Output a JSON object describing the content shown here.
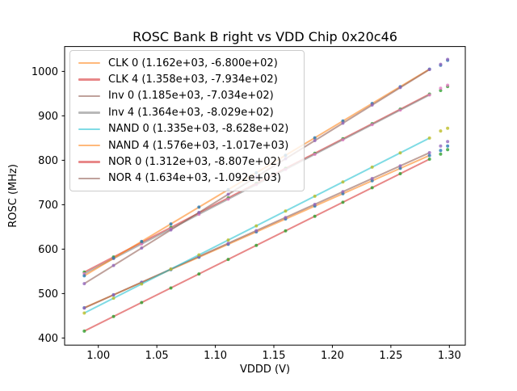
{
  "chart_data": {
    "type": "scatter",
    "title": "ROSC Bank B right vs VDD Chip 0x20c46",
    "xlabel": "VDDD (V)",
    "ylabel": "ROSC (MHz)",
    "xlim": [
      0.9712,
      1.3136
    ],
    "ylim": [
      384,
      1056
    ],
    "grid": false,
    "legend_position": "upper-left",
    "axis_color": "#000000",
    "background_color": "#ffffff",
    "line_alpha": 0.55,
    "dot_alpha": 0.78,
    "xticks": [
      1.0,
      1.05,
      1.1,
      1.15,
      1.2,
      1.25,
      1.3
    ],
    "xtick_labels": [
      "1.00",
      "1.05",
      "1.10",
      "1.15",
      "1.20",
      "1.25",
      "1.30"
    ],
    "yticks": [
      400,
      500,
      600,
      700,
      800,
      900,
      1000
    ],
    "ytick_labels": [
      "400",
      "500",
      "600",
      "700",
      "800",
      "900",
      "1000"
    ],
    "x_fit": [
      0.988,
      1.013,
      1.037,
      1.062,
      1.086,
      1.111,
      1.135,
      1.16,
      1.185,
      1.209,
      1.234,
      1.258,
      1.283
    ],
    "x_extra": [
      1.2925,
      1.2985
    ],
    "series": [
      {
        "name": "CLK 0",
        "legend_label": "CLK 0 (1.162e+03, -6.800e+02)",
        "slope": 1162,
        "intercept": -680.0,
        "line_color": "#ff7f0e",
        "dot_color": "#1f77b4",
        "y_fit": [
          468.1,
          497.1,
          525.0,
          554.0,
          581.9,
          611.0,
          638.9,
          667.9,
          697.0,
          724.9,
          753.9,
          781.8,
          810.8
        ],
        "y_extra": [
          822,
          832
        ]
      },
      {
        "name": "CLK 4",
        "legend_label": "CLK 4 (1.358e+03, -7.934e+02)",
        "slope": 1358,
        "intercept": -793.4,
        "line_color": "#d62728",
        "dot_color": "#2ca02c",
        "y_fit": [
          548.3,
          582.3,
          614.8,
          648.8,
          681.4,
          715.3,
          747.9,
          781.9,
          815.8,
          848.4,
          882.4,
          915.0,
          948.9
        ],
        "y_extra": [
          957,
          966
        ]
      },
      {
        "name": "Inv 0",
        "legend_label": "Inv 0 (1.185e+03, -7.034e+02)",
        "slope": 1185,
        "intercept": -703.4,
        "line_color": "#8c564b",
        "dot_color": "#9467bd",
        "y_fit": [
          467.4,
          497.0,
          525.4,
          555.1,
          583.5,
          613.1,
          641.6,
          671.2,
          700.8,
          729.3,
          758.9,
          787.3,
          817.0
        ],
        "y_extra": [
          832,
          842
        ]
      },
      {
        "name": "Inv 4",
        "legend_label": "Inv 4 (1.364e+03, -8.029e+02)",
        "slope": 1364,
        "intercept": -802.9,
        "line_color": "#7f7f7f",
        "dot_color": "#e377c2",
        "y_fit": [
          544.7,
          578.8,
          611.6,
          645.7,
          678.4,
          712.5,
          745.2,
          779.3,
          813.4,
          846.2,
          880.3,
          913.0,
          947.1
        ],
        "y_extra": [
          962,
          969
        ]
      },
      {
        "name": "NAND 0",
        "legend_label": "NAND 0 (1.335e+03, -8.628e+02)",
        "slope": 1335,
        "intercept": -862.8,
        "line_color": "#17becf",
        "dot_color": "#bcbd22",
        "y_fit": [
          456.2,
          489.6,
          521.6,
          555.0,
          587.0,
          620.4,
          652.4,
          685.8,
          719.2,
          751.2,
          784.6,
          816.6,
          850.0
        ],
        "y_extra": [
          866,
          872
        ]
      },
      {
        "name": "NAND 4",
        "legend_label": "NAND 4 (1.576e+03, -1.017e+03)",
        "slope": 1576,
        "intercept": -1017.0,
        "line_color": "#ff7f0e",
        "dot_color": "#1f77b4",
        "y_fit": [
          540.1,
          579.5,
          617.3,
          656.7,
          694.5,
          733.9,
          771.8,
          811.2,
          850.6,
          888.4,
          927.8,
          965.6,
          1005.0
        ],
        "y_extra": [
          1014,
          1025
        ]
      },
      {
        "name": "NOR 0",
        "legend_label": "NOR 0 (1.312e+03, -8.807e+02)",
        "slope": 1312,
        "intercept": -880.7,
        "line_color": "#d62728",
        "dot_color": "#2ca02c",
        "y_fit": [
          415.6,
          448.4,
          479.8,
          512.6,
          544.1,
          576.9,
          608.4,
          641.2,
          674.0,
          705.5,
          738.3,
          769.8,
          802.6
        ],
        "y_extra": [
          814,
          824
        ]
      },
      {
        "name": "NOR 4",
        "legend_label": "NOR 4 (1.634e+03, -1.092e+03)",
        "slope": 1634,
        "intercept": -1092.0,
        "line_color": "#8c564b",
        "dot_color": "#9467bd",
        "y_fit": [
          522.4,
          563.2,
          602.5,
          643.3,
          682.5,
          723.4,
          762.6,
          803.4,
          844.3,
          883.5,
          924.4,
          963.6,
          1004.4
        ],
        "y_extra": [
          1016,
          1027
        ]
      }
    ]
  }
}
